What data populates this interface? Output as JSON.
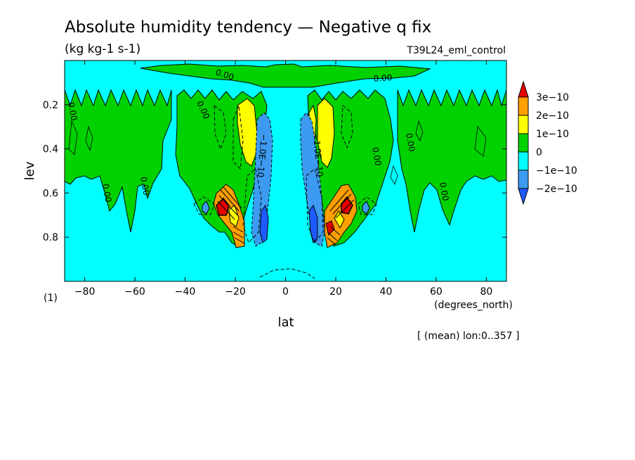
{
  "figure": {
    "title": "Absolute humidity tendency — Negative q fix",
    "units_label": "(kg kg-1 s-1)",
    "run_name": "T39L24_eml_control",
    "panel_label": "(1)",
    "x_units_label": "(degrees_north)",
    "averaging_note": "[ (mean) lon:0..357 ]"
  },
  "chart_data": {
    "type": "contour",
    "xlabel": "lat",
    "ylabel": "lev",
    "xlim": [
      -88,
      88
    ],
    "ylim": [
      0,
      1
    ],
    "y_inverted": true,
    "x_ticks": [
      -80,
      -60,
      -40,
      -20,
      0,
      20,
      40,
      60,
      80
    ],
    "x_tick_labels": [
      "−80",
      "−60",
      "−40",
      "−20",
      "0",
      "20",
      "40",
      "60",
      "80"
    ],
    "y_ticks": [
      0.2,
      0.4,
      0.6,
      0.8
    ],
    "y_tick_labels": [
      "0.2",
      "0.4",
      "0.6",
      "0.8"
    ],
    "colorbar": {
      "labels": [
        "3e−10",
        "2e−10",
        "1e−10",
        "0",
        "−1e−10",
        "−2e−10"
      ],
      "colors": [
        "#e60000",
        "#ff9f00",
        "#ffff00",
        "#00d200",
        "#00ffff",
        "#3c9bf0",
        "#1e5aff"
      ]
    },
    "contour_labels": [
      "0.00",
      "−1.0E−10"
    ],
    "background_color": "#00ffff",
    "fields": {
      "positive_bands_lat": [
        -88,
        -60,
        -40,
        40,
        60,
        88
      ],
      "upper_band_lev": [
        0.03,
        0.14
      ],
      "strong_positive_lat": [
        -25,
        24
      ],
      "strong_positive_lev": 0.67,
      "negative_lat": [
        -13,
        12
      ],
      "negative_lev": [
        0.25,
        0.82
      ]
    }
  }
}
